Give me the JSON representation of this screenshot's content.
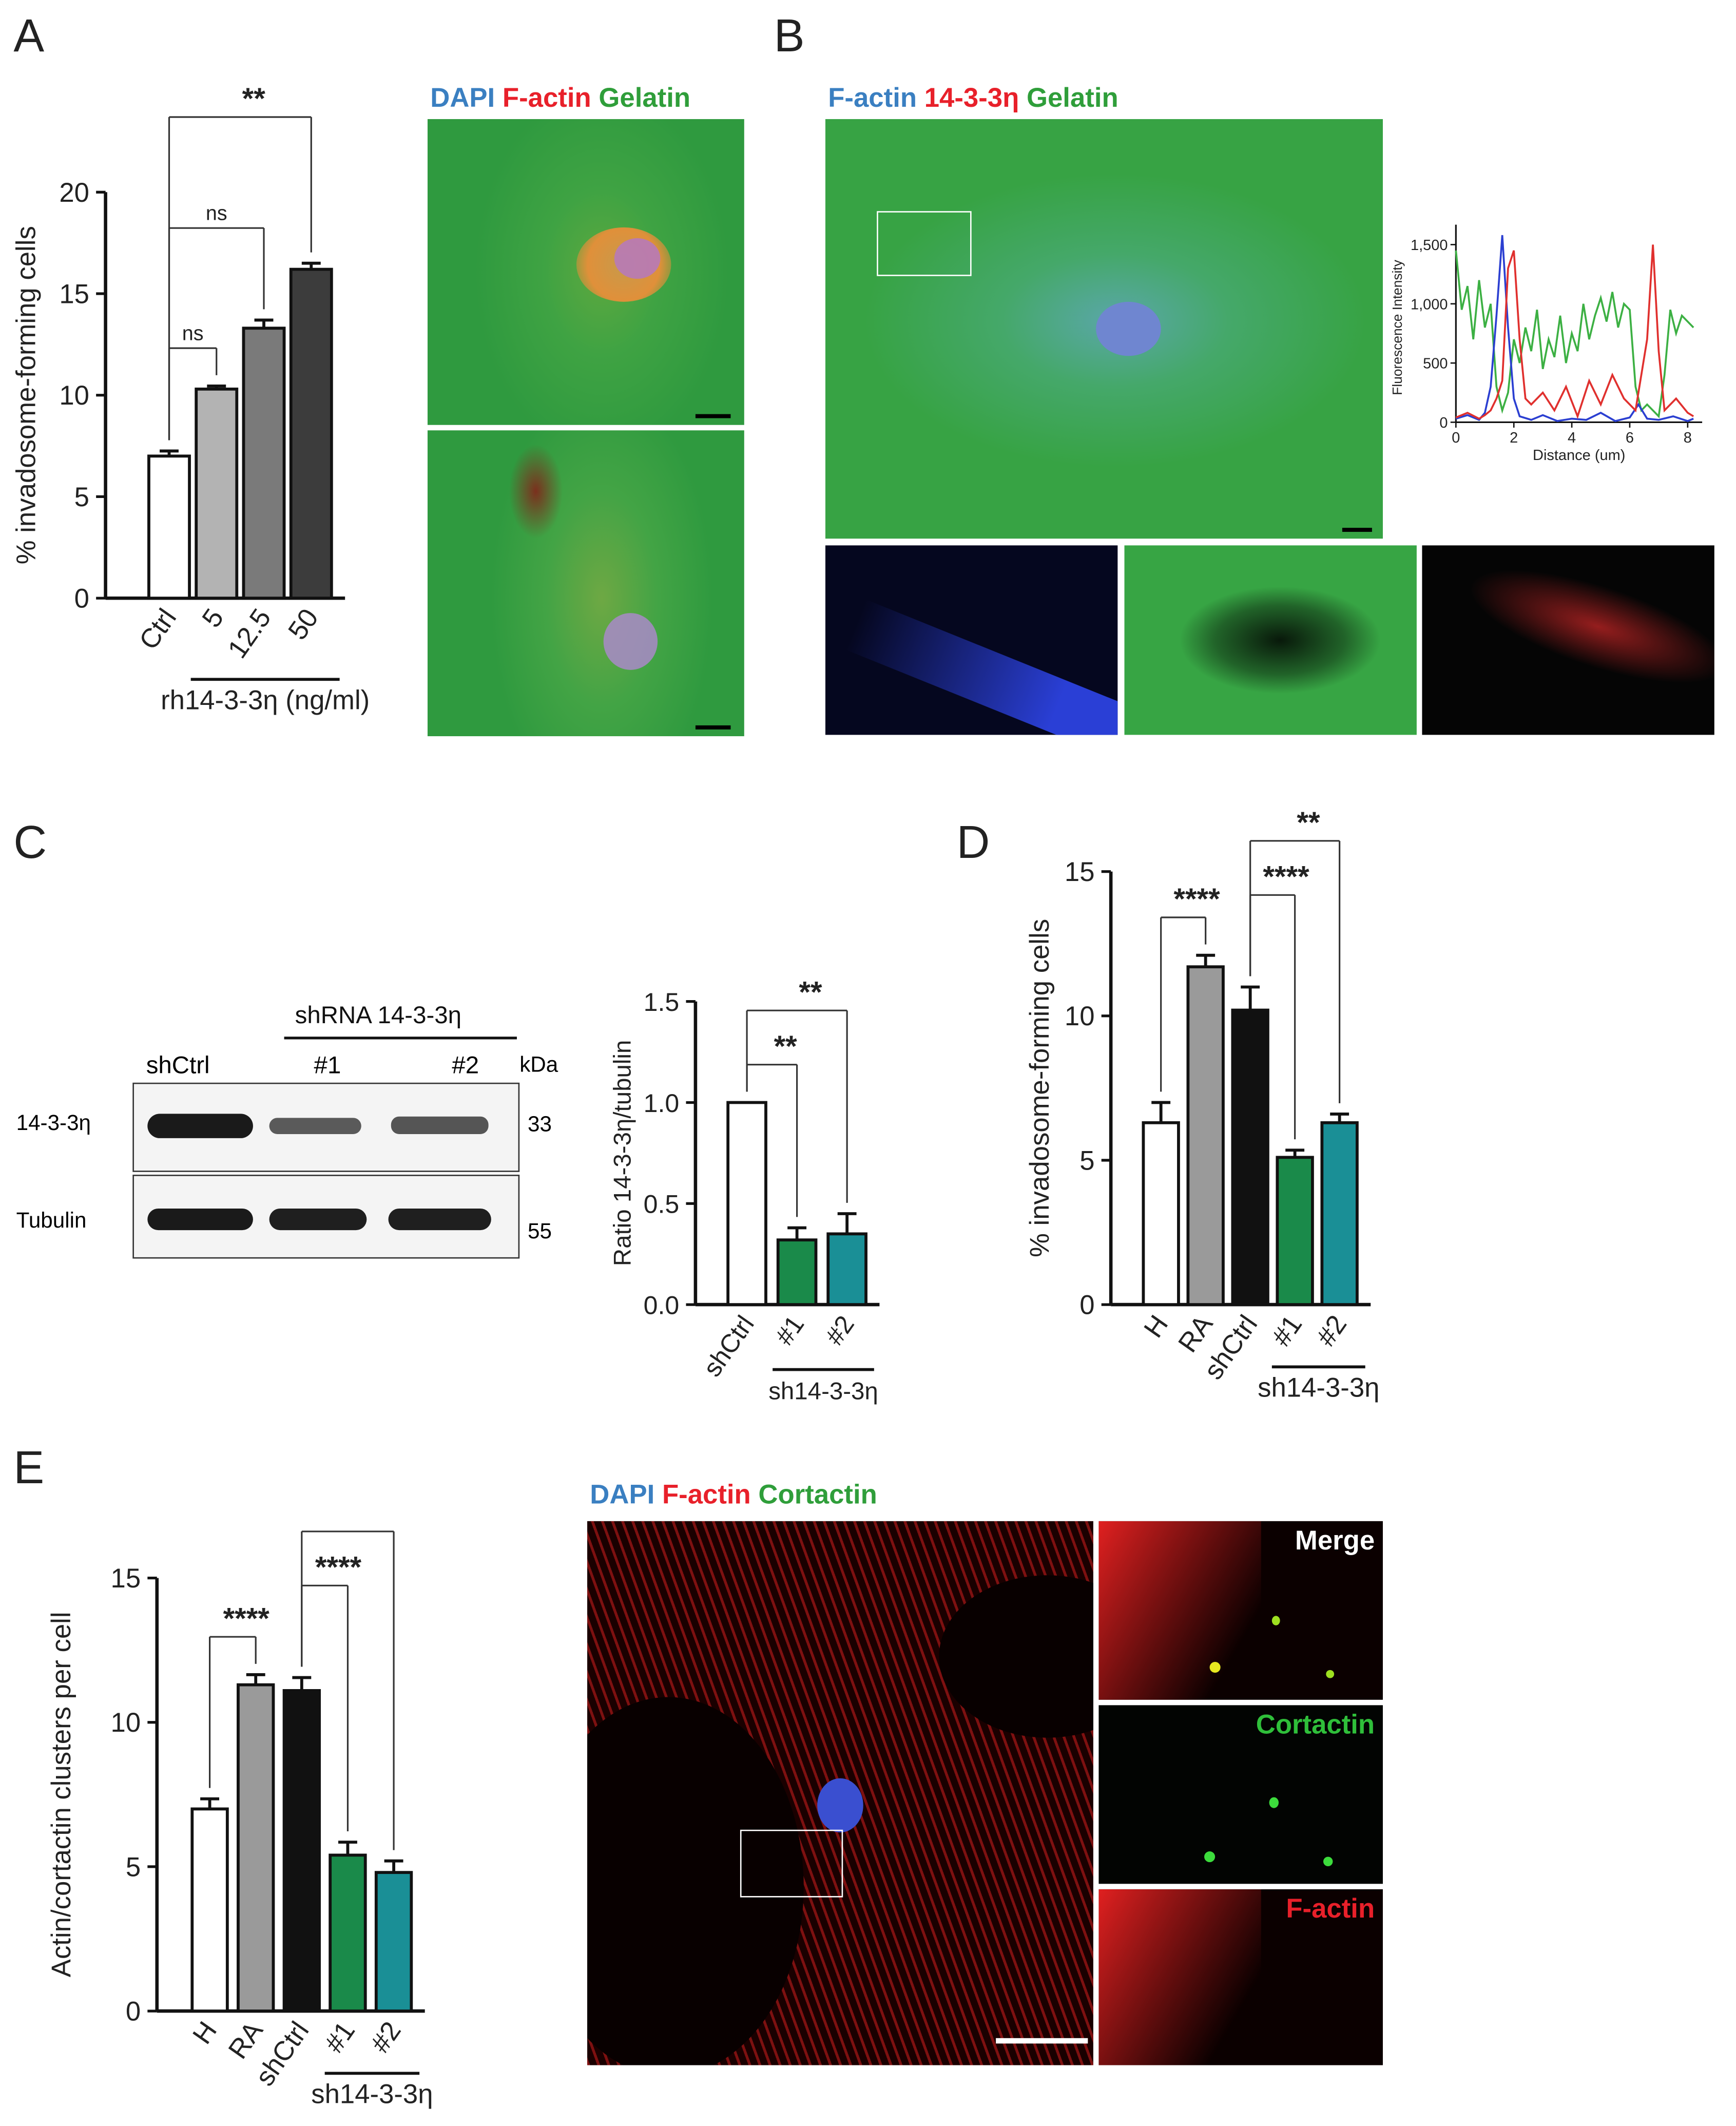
{
  "panels": {
    "A": {
      "letter": "A",
      "micro_labels": [
        {
          "text": "DAPI",
          "color": "#3a7fc1"
        },
        {
          "text": "F-actin",
          "color": "#e8202a"
        },
        {
          "text": "Gelatin",
          "color": "#2f9e3a"
        }
      ]
    },
    "B": {
      "letter": "B",
      "micro_labels": [
        {
          "text": "F-actin",
          "color": "#3a7fc1"
        },
        {
          "text": "14-3-3η",
          "color": "#e8202a"
        },
        {
          "text": "Gelatin",
          "color": "#2f9e3a"
        }
      ]
    },
    "C": {
      "letter": "C",
      "blot": {
        "group_label": "shRNA 14-3-3η",
        "lanes": [
          "shCtrl",
          "#1",
          "#2"
        ],
        "unit": "kDa",
        "rows": [
          {
            "label": "14-3-3η",
            "kda": "33"
          },
          {
            "label": "Tubulin",
            "kda": "55"
          }
        ]
      }
    },
    "D": {
      "letter": "D"
    },
    "E": {
      "letter": "E",
      "micro_labels": [
        {
          "text": "DAPI",
          "color": "#3a7fc1"
        },
        {
          "text": "F-actin",
          "color": "#e8202a"
        },
        {
          "text": "Cortactin",
          "color": "#2f9e3a"
        }
      ],
      "inset_labels": [
        {
          "text": "Merge",
          "color": "#ffffff"
        },
        {
          "text": "Cortactin",
          "color": "#2fbf3a"
        },
        {
          "text": "F-actin",
          "color": "#e8202a"
        }
      ]
    }
  },
  "chart_data": [
    {
      "id": "A",
      "type": "bar",
      "ylabel": "% invadosome-forming cells",
      "categories": [
        "Ctrl",
        "5",
        "12.5",
        "50"
      ],
      "values": [
        7.0,
        10.3,
        13.3,
        16.2
      ],
      "errors": [
        0.25,
        0.15,
        0.4,
        0.3
      ],
      "colors": [
        "#ffffff",
        "#b3b3b3",
        "#7a7a7a",
        "#3c3c3c"
      ],
      "ylim": [
        0,
        20
      ],
      "yticks": [
        0,
        5,
        10,
        15,
        20
      ],
      "group_label": "rh14-3-3η (ng/ml)",
      "significance": [
        {
          "from": 0,
          "to": 1,
          "label": "ns"
        },
        {
          "from": 0,
          "to": 2,
          "label": "ns"
        },
        {
          "from": 0,
          "to": 3,
          "label": "**"
        }
      ]
    },
    {
      "id": "B",
      "type": "line",
      "xlabel": "Distance (um)",
      "ylabel": "Fluorescence Intensity",
      "xlim": [
        0,
        8.5
      ],
      "ylim": [
        0,
        1600
      ],
      "xticks": [
        0,
        2,
        4,
        6,
        8
      ],
      "yticks": [
        0,
        500,
        1000,
        1500
      ],
      "ytick_labels": [
        "0",
        "500",
        "1,000",
        "1,500"
      ],
      "series": [
        {
          "color": "#3cb043",
          "x": [
            0,
            0.2,
            0.4,
            0.6,
            0.8,
            1.0,
            1.2,
            1.4,
            1.6,
            1.8,
            2.0,
            2.2,
            2.4,
            2.6,
            2.8,
            3.0,
            3.2,
            3.4,
            3.6,
            3.8,
            4.0,
            4.2,
            4.4,
            4.6,
            4.8,
            5.0,
            5.2,
            5.4,
            5.6,
            5.8,
            6.0,
            6.2,
            6.4,
            6.6,
            6.8,
            7.0,
            7.2,
            7.4,
            7.6,
            7.8,
            8.0,
            8.2
          ],
          "y": [
            1450,
            950,
            1150,
            700,
            1200,
            800,
            1000,
            300,
            100,
            250,
            700,
            500,
            800,
            600,
            950,
            450,
            700,
            550,
            900,
            500,
            750,
            600,
            1000,
            700,
            900,
            1050,
            850,
            1100,
            800,
            1000,
            950,
            300,
            100,
            150,
            100,
            50,
            400,
            950,
            750,
            900,
            850,
            800
          ]
        },
        {
          "color": "#2b3fd1",
          "x": [
            0,
            0.4,
            0.8,
            1.0,
            1.2,
            1.4,
            1.6,
            1.8,
            2.0,
            2.2,
            2.6,
            3.0,
            3.5,
            4.0,
            4.5,
            5.0,
            5.5,
            6.0,
            6.3,
            6.6,
            7.0,
            7.5,
            8.0,
            8.2
          ],
          "y": [
            30,
            60,
            20,
            80,
            300,
            900,
            1580,
            800,
            200,
            50,
            20,
            60,
            10,
            30,
            20,
            80,
            10,
            40,
            150,
            30,
            20,
            50,
            10,
            30
          ]
        },
        {
          "color": "#e0302e",
          "x": [
            0,
            0.4,
            0.8,
            1.0,
            1.2,
            1.4,
            1.6,
            1.8,
            2.0,
            2.2,
            2.4,
            2.6,
            3.0,
            3.4,
            3.8,
            4.2,
            4.6,
            5.0,
            5.4,
            5.8,
            6.2,
            6.6,
            6.8,
            7.0,
            7.2,
            7.6,
            8.0,
            8.2
          ],
          "y": [
            40,
            80,
            30,
            60,
            100,
            200,
            350,
            1300,
            1450,
            700,
            200,
            150,
            250,
            100,
            300,
            50,
            350,
            150,
            400,
            200,
            100,
            700,
            1500,
            600,
            100,
            200,
            80,
            50
          ]
        }
      ]
    },
    {
      "id": "C",
      "type": "bar",
      "ylabel": "Ratio 14-3-3η/tubulin",
      "categories": [
        "shCtrl",
        "#1",
        "#2"
      ],
      "values": [
        1.0,
        0.32,
        0.35
      ],
      "errors": [
        0,
        0.06,
        0.1
      ],
      "colors": [
        "#ffffff",
        "#1a8a4a",
        "#1a8f96"
      ],
      "ylim": [
        0,
        1.5
      ],
      "yticks": [
        0.0,
        0.5,
        1.0,
        1.5
      ],
      "ytick_labels": [
        "0.0",
        "0.5",
        "1.0",
        "1.5"
      ],
      "group_label": "sh14-3-3η",
      "group_from": 1,
      "significance": [
        {
          "from": 0,
          "to": 1,
          "label": "**"
        },
        {
          "from": 0,
          "to": 2,
          "label": "**"
        }
      ]
    },
    {
      "id": "D",
      "type": "bar",
      "ylabel": "% invadosome-forming cells",
      "categories": [
        "H",
        "RA",
        "shCtrl",
        "#1",
        "#2"
      ],
      "values": [
        6.3,
        11.7,
        10.2,
        5.1,
        6.3
      ],
      "errors": [
        0.7,
        0.4,
        0.8,
        0.25,
        0.3
      ],
      "colors": [
        "#ffffff",
        "#9a9a9a",
        "#111111",
        "#1a8a4a",
        "#1a8f96"
      ],
      "ylim": [
        0,
        15
      ],
      "yticks": [
        0,
        5,
        10,
        15
      ],
      "group_label": "sh14-3-3η",
      "group_from": 3,
      "significance": [
        {
          "from": 0,
          "to": 1,
          "label": "****"
        },
        {
          "from": 2,
          "to": 3,
          "label": "****"
        },
        {
          "from": 2,
          "to": 4,
          "label": "**"
        }
      ]
    },
    {
      "id": "E",
      "type": "bar",
      "ylabel": "Actin/cortactin clusters per cell",
      "categories": [
        "H",
        "RA",
        "shCtrl",
        "#1",
        "#2"
      ],
      "values": [
        7.0,
        11.3,
        11.1,
        5.4,
        4.8
      ],
      "errors": [
        0.35,
        0.35,
        0.45,
        0.45,
        0.4
      ],
      "colors": [
        "#ffffff",
        "#9a9a9a",
        "#111111",
        "#1a8a4a",
        "#1a8f96"
      ],
      "ylim": [
        0,
        15
      ],
      "yticks": [
        0,
        5,
        10,
        15
      ],
      "group_label": "sh14-3-3η",
      "group_from": 3,
      "significance": [
        {
          "from": 0,
          "to": 1,
          "label": "****"
        },
        {
          "from": 2,
          "to": 3,
          "label": "****"
        },
        {
          "from": 2,
          "to": 4,
          "label": "****"
        }
      ]
    }
  ]
}
